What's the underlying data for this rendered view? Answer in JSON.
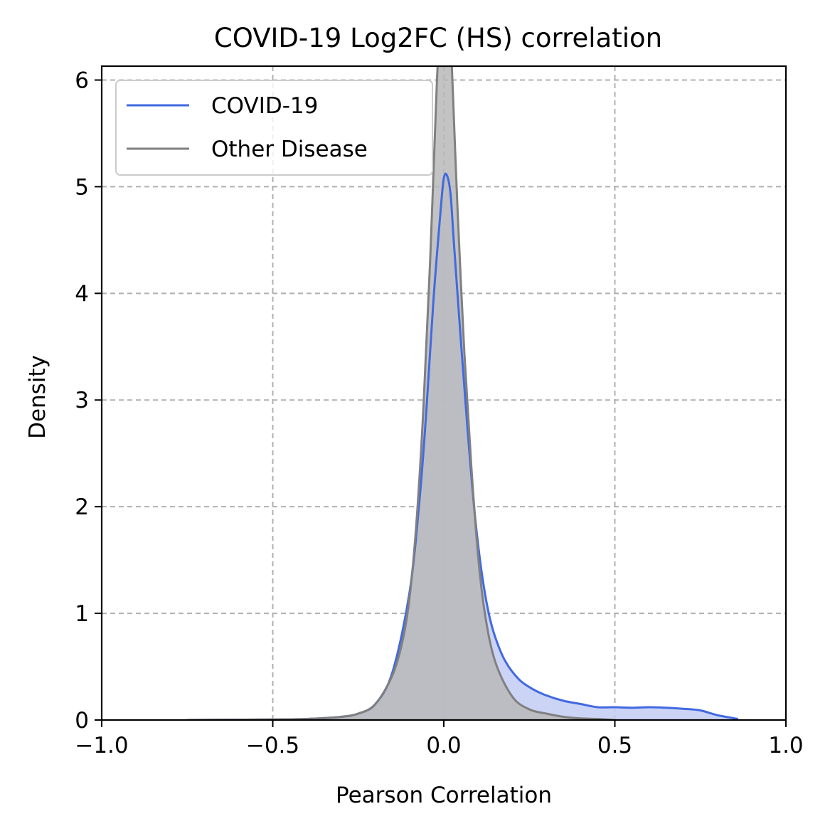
{
  "chart_data": {
    "type": "area",
    "title": "COVID-19 Log2FC (HS) correlation",
    "xlabel": "Pearson Correlation",
    "ylabel": "Density",
    "xlim": [
      -1.0,
      1.0
    ],
    "ylim": [
      0,
      6.13
    ],
    "x_ticks": [
      -1.0,
      -0.5,
      0.0,
      0.5,
      1.0
    ],
    "x_tick_labels": [
      "−1.0",
      "−0.5",
      "0.0",
      "0.5",
      "1.0"
    ],
    "y_ticks": [
      0,
      1,
      2,
      3,
      4,
      5,
      6
    ],
    "y_tick_labels": [
      "0",
      "1",
      "2",
      "3",
      "4",
      "5",
      "6"
    ],
    "grid": true,
    "legend_position": "top-left",
    "series": [
      {
        "name": "COVID-19",
        "color": "#4169e1",
        "fill_color": "#c3cdf5",
        "x": [
          -0.75,
          -0.5,
          -0.4,
          -0.3,
          -0.25,
          -0.2,
          -0.15,
          -0.1,
          -0.07,
          -0.05,
          -0.03,
          -0.01,
          0.0,
          0.01,
          0.02,
          0.03,
          0.05,
          0.07,
          0.09,
          0.11,
          0.13,
          0.15,
          0.18,
          0.22,
          0.26,
          0.3,
          0.35,
          0.4,
          0.45,
          0.5,
          0.55,
          0.6,
          0.65,
          0.7,
          0.75,
          0.8,
          0.86
        ],
        "y": [
          0.0,
          0.005,
          0.01,
          0.03,
          0.06,
          0.15,
          0.45,
          1.2,
          2.1,
          2.95,
          3.95,
          4.75,
          5.08,
          5.1,
          4.92,
          4.45,
          3.55,
          2.7,
          1.95,
          1.4,
          1.02,
          0.78,
          0.55,
          0.38,
          0.29,
          0.23,
          0.18,
          0.15,
          0.12,
          0.12,
          0.115,
          0.12,
          0.115,
          0.105,
          0.09,
          0.045,
          0.01
        ]
      },
      {
        "name": "Other Disease",
        "color": "#808080",
        "fill_color": "#b9b9b9",
        "x": [
          -0.75,
          -0.5,
          -0.4,
          -0.3,
          -0.25,
          -0.2,
          -0.15,
          -0.12,
          -0.1,
          -0.08,
          -0.06,
          -0.04,
          -0.02,
          -0.01,
          0.0,
          0.01,
          0.02,
          0.03,
          0.04,
          0.06,
          0.08,
          0.1,
          0.12,
          0.15,
          0.2,
          0.25,
          0.3,
          0.35,
          0.4,
          0.45,
          0.5
        ],
        "y": [
          0.0,
          0.005,
          0.01,
          0.03,
          0.06,
          0.15,
          0.42,
          0.75,
          1.15,
          1.85,
          2.9,
          4.3,
          6.0,
          6.5,
          6.9,
          6.9,
          6.4,
          5.6,
          4.8,
          3.45,
          2.4,
          1.55,
          1.0,
          0.55,
          0.22,
          0.1,
          0.06,
          0.03,
          0.015,
          0.01,
          0.0
        ]
      }
    ]
  }
}
